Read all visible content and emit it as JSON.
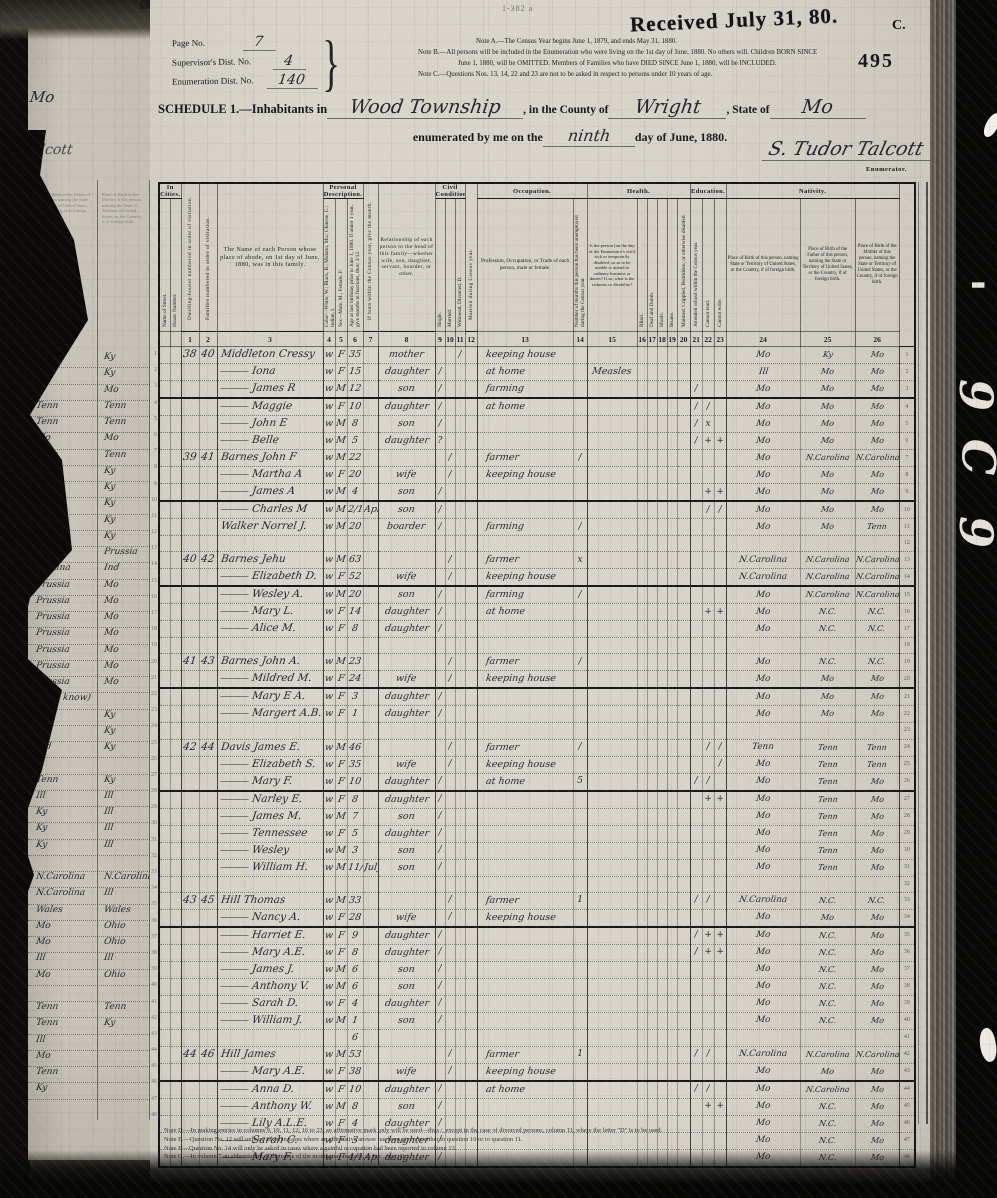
{
  "film": {
    "received_stamp": "Received July 31, 80.",
    "corner_letter": "C.",
    "page_stamp": "495",
    "form_number": "1-382 a",
    "edge_glyphs": [
      "'",
      "9",
      "C",
      "9"
    ]
  },
  "header": {
    "page_no_label": "Page No.",
    "page_no_value": "7",
    "supervisor_label": "Supervisor's Dist. No.",
    "supervisor_value": "4",
    "enumeration_label": "Enumeration Dist. No.",
    "enumeration_value": "140",
    "brace": "}",
    "note_a": "Note A.—The Census Year begins June 1, 1879, and ends May 31, 1880.",
    "note_b1": "Note B.—All persons will be included in the Enumeration who were living on the 1st day of June, 1880.  No others will.  Children BORN SINCE",
    "note_b2": "June 1, 1880, will be OMITTED.  Members of Families who have DIED SINCE June 1, 1880, will be INCLUDED.",
    "note_c": "Note C.—Questions Nos. 13, 14, 22 and 23 are not to be asked in respect to persons under 10 years of age."
  },
  "schedule": {
    "title_prefix": "SCHEDULE 1.—Inhabitants in",
    "township": "Wood Township",
    "county_label": ", in the County of",
    "county": "Wright",
    "state_label": ", State of",
    "state": "Mo",
    "enumerated_prefix": "enumerated by me on the",
    "enumerated_day": "ninth",
    "enumerated_suffix": "day of June, 1880.",
    "enumerator_signature": "S. Tudor Talcott",
    "enumerator_label": "Enumerator."
  },
  "table": {
    "ditto_mark": "———",
    "headers": {
      "in_cities": "In Cities.",
      "street": "Name of Street.",
      "house": "House Number.",
      "dwelling": "Dwelling-houses numbered in order of visitation.",
      "family": "Families numbered in order of visitation.",
      "name": "The Name of each Person whose place of abode, on 1st day of June, 1880, was in this family.",
      "personal": "Personal Description.",
      "color": "Color—White, W.; Black, B.; Mulatto, Mu.; Chinese, C.; Indian, I.",
      "sex": "Sex—Male, M.; Female, F.",
      "age": "Age at last birthday prior to June 1, 1880.  If under 1 year, give months in fractions, thus: 3/12.",
      "month": "If born within the Census year, give the month.",
      "relationship": "Relationship of each person to the head of this family—whether wife, son, daughter, servant, boarder, or other.",
      "civil": "Civil Condition.",
      "single": "Single.",
      "married": "Married.",
      "widowed": "Widowed, Divorced, D.",
      "married_year": "Married during Census year.",
      "occupation_group": "Occupation.",
      "profession": "Profession, Occupation, or Trade of each person, male or female.",
      "unemployed": "Number of months this person has been unemployed during the Census year.",
      "health_group": "Health.",
      "sickness": "Is the person [on the day of the Enumerator's visit] sick or temporarily disabled, so as to be unable to attend to ordinary business or duties?  If so, what is the sickness or disability?",
      "blind": "Blind.",
      "deaf": "Deaf and Dumb.",
      "idiotic": "Idiotic.",
      "insane": "Insane.",
      "maimed": "Maimed, Crippled, Bedridden, or otherwise disabled.",
      "education_group": "Education.",
      "school": "Attended school within the Census year.",
      "cannot_read": "Cannot read.",
      "cannot_write": "Cannot write.",
      "nativity_group": "Nativity.",
      "birth_person": "Place of Birth of this person, naming State or Territory of United States, or the Country, if of foreign birth.",
      "birth_father": "Place of Birth of the Father of this person, naming the State or Territory of United States, or the Country, if of foreign birth.",
      "birth_mother": "Place of Birth of the Mother of this person, naming the State or Territory of United States, or the Country, if of foreign birth."
    },
    "numbers": [
      "1",
      "2",
      "3",
      "4",
      "5",
      "6",
      "7",
      "8",
      "9",
      "10",
      "11",
      "12",
      "13",
      "14",
      "15",
      "16",
      "17",
      "18",
      "19",
      "20",
      "21",
      "22",
      "23",
      "24",
      "25",
      "26"
    ],
    "heavy_rows": [
      3,
      9,
      14,
      20,
      26,
      34,
      43
    ],
    "rows": [
      {
        "d": "38",
        "f": "40",
        "n": "Middleton Cressy",
        "c": "w",
        "s": "F",
        "a": "35",
        "r": "mother",
        "w11": "/",
        "occ": "keeping house",
        "b24": "Mo",
        "b25": "Ky",
        "b26": "Mo"
      },
      {
        "dit": 1,
        "n": "Iona",
        "c": "w",
        "s": "F",
        "a": "15",
        "r": "daughter",
        "s9": "/",
        "occ": "at home",
        "sick": "Measles",
        "b24": "Ill",
        "b25": "Mo",
        "b26": "Mo"
      },
      {
        "dit": 1,
        "n": "James R",
        "c": "w",
        "s": "M",
        "a": "12",
        "r": "son",
        "s9": "/",
        "occ": "farming",
        "e21": "/",
        "b24": "Mo",
        "b25": "Mo",
        "b26": "Mo"
      },
      {
        "dit": 1,
        "n": "Maggie",
        "c": "w",
        "s": "F",
        "a": "10",
        "r": "daughter",
        "s9": "/",
        "occ": "at home",
        "e21": "/",
        "e22": "/",
        "b24": "Mo",
        "b25": "Mo",
        "b26": "Mo"
      },
      {
        "dit": 1,
        "n": "John E",
        "c": "w",
        "s": "M",
        "a": "8",
        "r": "son",
        "s9": "/",
        "e21": "/",
        "e22": "x",
        "b24": "Mo",
        "b25": "Mo",
        "b26": "Mo"
      },
      {
        "dit": 1,
        "n": "Belle",
        "c": "w",
        "s": "M",
        "a": "5",
        "r": "daughter",
        "s9": "?",
        "e21": "/",
        "e22": "+",
        "e23": "+",
        "b24": "Mo",
        "b25": "Mo",
        "b26": "Mo"
      },
      {
        "d": "39",
        "f": "41",
        "n": "Barnes John F",
        "c": "w",
        "s": "M",
        "a": "22",
        "m10": "/",
        "occ": "farmer",
        "u14": "/",
        "b24": "Mo",
        "b25": "N.Carolina",
        "b26": "N.Carolina"
      },
      {
        "dit": 1,
        "n": "Martha A",
        "c": "w",
        "s": "F",
        "a": "20",
        "r": "wife",
        "m10": "/",
        "occ": "keeping house",
        "b24": "Mo",
        "b25": "Mo",
        "b26": "Mo"
      },
      {
        "dit": 1,
        "n": "James A",
        "c": "w",
        "s": "M",
        "a": "4",
        "r": "son",
        "s9": "/",
        "e22": "+",
        "e23": "+",
        "b24": "Mo",
        "b25": "Mo",
        "b26": "Mo"
      },
      {
        "dit": 1,
        "n": "Charles M",
        "c": "w",
        "s": "M",
        "a": "2/12",
        "mo": "Apl",
        "r": "son",
        "s9": "/",
        "e22": "/",
        "e23": "/",
        "b24": "Mo",
        "b25": "Mo",
        "b26": "Mo"
      },
      {
        "n": "Walker Norrel J.",
        "c": "w",
        "s": "M",
        "a": "20",
        "r": "boarder",
        "s9": "/",
        "occ": "farming",
        "u14": "/",
        "b24": "Mo",
        "b25": "Mo",
        "b26": "Tenn"
      },
      {},
      {
        "d": "40",
        "f": "42",
        "n": "Barnes Jehu",
        "c": "w",
        "s": "M",
        "a": "63",
        "m10": "/",
        "occ": "farmer",
        "u14": "x",
        "b24": "N.Carolina",
        "b25": "N.Carolina",
        "b26": "N.Carolina"
      },
      {
        "dit": 1,
        "n": "Elizabeth D.",
        "c": "w",
        "s": "F",
        "a": "52",
        "r": "wife",
        "m10": "/",
        "occ": "keeping house",
        "b24": "N.Carolina",
        "b25": "N.Carolina",
        "b26": "N.Carolina"
      },
      {
        "dit": 1,
        "n": "Wesley A.",
        "c": "w",
        "s": "M",
        "a": "20",
        "r": "son",
        "s9": "/",
        "occ": "farming",
        "u14": "/",
        "b24": "Mo",
        "b25": "N.Carolina",
        "b26": "N.Carolina"
      },
      {
        "dit": 1,
        "n": "Mary L.",
        "c": "w",
        "s": "F",
        "a": "14",
        "r": "daughter",
        "s9": "/",
        "occ": "at home",
        "e22": "+",
        "e23": "+",
        "b24": "Mo",
        "b25": "N.C.",
        "b26": "N.C."
      },
      {
        "dit": 1,
        "n": "Alice M.",
        "c": "w",
        "s": "F",
        "a": "8",
        "r": "daughter",
        "s9": "/",
        "b24": "Mo",
        "b25": "N.C.",
        "b26": "N.C."
      },
      {},
      {
        "d": "41",
        "f": "43",
        "n": "Barnes John A.",
        "c": "w",
        "s": "M",
        "a": "23",
        "m10": "/",
        "occ": "farmer",
        "u14": "/",
        "b24": "Mo",
        "b25": "N.C.",
        "b26": "N.C."
      },
      {
        "dit": 1,
        "n": "Mildred M.",
        "c": "w",
        "s": "F",
        "a": "24",
        "r": "wife",
        "m10": "/",
        "occ": "keeping house",
        "b24": "Mo",
        "b25": "Mo",
        "b26": "Mo"
      },
      {
        "dit": 1,
        "n": "Mary E A.",
        "c": "w",
        "s": "F",
        "a": "3",
        "r": "daughter",
        "s9": "/",
        "b24": "Mo",
        "b25": "Mo",
        "b26": "Mo"
      },
      {
        "dit": 1,
        "n": "Margert A.B.",
        "c": "w",
        "s": "F",
        "a": "1",
        "r": "daughter",
        "s9": "/",
        "b24": "Mo",
        "b25": "Mo",
        "b26": "Mo"
      },
      {},
      {
        "d": "42",
        "f": "44",
        "n": "Davis James E.",
        "c": "w",
        "s": "M",
        "a": "46",
        "m10": "/",
        "occ": "farmer",
        "u14": "/",
        "e22": "/",
        "e23": "/",
        "b24": "Tenn",
        "b25": "Tenn",
        "b26": "Tenn"
      },
      {
        "dit": 1,
        "n": "Elizabeth S.",
        "c": "w",
        "s": "F",
        "a": "35",
        "r": "wife",
        "m10": "/",
        "occ": "keeping house",
        "e23": "/",
        "b24": "Mo",
        "b25": "Tenn",
        "b26": "Tenn"
      },
      {
        "dit": 1,
        "n": "Mary F.",
        "c": "w",
        "s": "F",
        "a": "10",
        "r": "daughter",
        "s9": "/",
        "occ": "at home",
        "u14": "5",
        "e21": "/",
        "e22": "/",
        "b24": "Mo",
        "b25": "Tenn",
        "b26": "Mo"
      },
      {
        "dit": 1,
        "n": "Narley E.",
        "c": "w",
        "s": "F",
        "a": "8",
        "r": "daughter",
        "s9": "/",
        "e22": "+",
        "e23": "+",
        "b24": "Mo",
        "b25": "Tenn",
        "b26": "Mo"
      },
      {
        "dit": 1,
        "n": "James M.",
        "c": "w",
        "s": "M",
        "a": "7",
        "r": "son",
        "s9": "/",
        "b24": "Mo",
        "b25": "Tenn",
        "b26": "Mo"
      },
      {
        "dit": 1,
        "n": "Tennessee",
        "c": "w",
        "s": "F",
        "a": "5",
        "r": "daughter",
        "s9": "/",
        "b24": "Mo",
        "b25": "Tenn",
        "b26": "Mo"
      },
      {
        "dit": 1,
        "n": "Wesley",
        "c": "w",
        "s": "M",
        "a": "3",
        "r": "son",
        "s9": "/",
        "b24": "Mo",
        "b25": "Tenn",
        "b26": "Mo"
      },
      {
        "dit": 1,
        "n": "William H.",
        "c": "w",
        "s": "M",
        "a": "11/12",
        "mo": "July",
        "r": "son",
        "s9": "/",
        "b24": "Mo",
        "b25": "Tenn",
        "b26": "Mo"
      },
      {},
      {
        "d": "43",
        "f": "45",
        "n": "Hill Thomas",
        "c": "w",
        "s": "M",
        "a": "33",
        "m10": "/",
        "occ": "farmer",
        "u14": "1",
        "e21": "/",
        "e22": "/",
        "b24": "N.Carolina",
        "b25": "N.C.",
        "b26": "N.C."
      },
      {
        "dit": 1,
        "n": "Nancy A.",
        "c": "w",
        "s": "F",
        "a": "28",
        "r": "wife",
        "m10": "/",
        "occ": "keeping house",
        "b24": "Mo",
        "b25": "Mo",
        "b26": "Mo"
      },
      {
        "dit": 1,
        "n": "Harriet E.",
        "c": "w",
        "s": "F",
        "a": "9",
        "r": "daughter",
        "s9": "/",
        "e21": "/",
        "e22": "+",
        "e23": "+",
        "b24": "Mo",
        "b25": "N.C.",
        "b26": "Mo"
      },
      {
        "dit": 1,
        "n": "Mary A.E.",
        "c": "w",
        "s": "F",
        "a": "8",
        "r": "daughter",
        "s9": "/",
        "e21": "/",
        "e22": "+",
        "e23": "+",
        "b24": "Mo",
        "b25": "N.C.",
        "b26": "Mo"
      },
      {
        "dit": 1,
        "n": "James J.",
        "c": "w",
        "s": "M",
        "a": "6",
        "r": "son",
        "s9": "/",
        "b24": "Mo",
        "b25": "N.C.",
        "b26": "Mo"
      },
      {
        "dit": 1,
        "n": "Anthony V.",
        "c": "w",
        "s": "M",
        "a": "6",
        "r": "son",
        "s9": "/",
        "b24": "Mo",
        "b25": "N.C.",
        "b26": "Mo"
      },
      {
        "dit": 1,
        "n": "Sarah D.",
        "c": "w",
        "s": "F",
        "a": "4",
        "r": "daughter",
        "s9": "/",
        "b24": "Mo",
        "b25": "N.C.",
        "b26": "Mo"
      },
      {
        "dit": 1,
        "n": "William J.",
        "c": "w",
        "s": "M",
        "a": "1",
        "r": "son",
        "s9": "/",
        "b24": "Mo",
        "b25": "N.C.",
        "b26": "Mo"
      },
      {
        "a": "6"
      },
      {
        "d": "44",
        "f": "46",
        "n": "Hill James",
        "c": "w",
        "s": "M",
        "a": "53",
        "m10": "/",
        "occ": "farmer",
        "u14": "1",
        "e21": "/",
        "e22": "/",
        "b24": "N.Carolina",
        "b25": "N.Carolina",
        "b26": "N.Carolina"
      },
      {
        "dit": 1,
        "n": "Mary A.E.",
        "c": "w",
        "s": "F",
        "a": "38",
        "r": "wife",
        "m10": "/",
        "occ": "keeping house",
        "b24": "Mo",
        "b25": "Mo",
        "b26": "Mo"
      },
      {
        "dit": 1,
        "n": "Anna D.",
        "c": "w",
        "s": "F",
        "a": "10",
        "r": "daughter",
        "s9": "/",
        "occ": "at home",
        "e21": "/",
        "e22": "/",
        "b24": "Mo",
        "b25": "N.Carolina",
        "b26": "Mo"
      },
      {
        "dit": 1,
        "n": "Anthony W.",
        "c": "w",
        "s": "M",
        "a": "8",
        "r": "son",
        "s9": "/",
        "e22": "+",
        "e23": "+",
        "b24": "Mo",
        "b25": "N.C.",
        "b26": "Mo"
      },
      {
        "dit": 1,
        "n": "Lily A.L.E.",
        "c": "w",
        "s": "F",
        "a": "4",
        "r": "daughter",
        "s9": "/",
        "b24": "Mo",
        "b25": "N.C.",
        "b26": "Mo"
      },
      {
        "dit": 1,
        "n": "Sarah C.",
        "c": "w",
        "s": "F",
        "a": "3",
        "r": "daughter",
        "s9": "/",
        "b24": "Mo",
        "b25": "N.C.",
        "b26": "Mo"
      },
      {
        "dit": 1,
        "n": "Mary F.",
        "c": "w",
        "s": "F",
        "a": "4/12",
        "mo": "Apr",
        "r": "daughter",
        "s9": "/",
        "b24": "Mo",
        "b25": "N.C.",
        "b26": "Mo"
      }
    ]
  },
  "left_fragment": {
    "hw_top": "Mo",
    "hw_sig": "Talcott",
    "rows": [
      "Ky|Ky",
      "Ky|Ky",
      "|Mo",
      "Tenn|Tenn",
      "Tenn|Tenn",
      "Mo|Mo",
      "Tenn|Tenn",
      "Ky|Ky",
      "Mo|Ky",
      "Ky|Ky",
      "Ky|Ky",
      "Ky|Ky",
      "Prussia|Prussia",
      "Indiana|Ind",
      "Prussia|Mo",
      "Prussia|Mo",
      "Prussia|Mo",
      "Prussia|Mo",
      "Prussia|Mo",
      "Prussia|Mo",
      "Prussia|Mo",
      "(dont know)|",
      "Ky|Ky",
      "Ind|Ky",
      "Ind|Ky",
      "|",
      "Tenn|Ky",
      "Ill|Ill",
      "Ky|Ill",
      "Ky|Ill",
      "Ky|Ill",
      "|",
      "N.Carolina|N.Carolina",
      "N.Carolina|Ill",
      "Wales|Wales",
      "Mo|Ohio",
      "Mo|Ohio",
      "Ill|Ill",
      "Mo|Ohio",
      "|",
      "Tenn|Tenn",
      "Tenn|Ky",
      "Ill|",
      "Mo|",
      "Tenn|",
      "Ky|"
    ]
  },
  "footnotes": [
    "Note D.—In making entries in columns 9, 10, 11, 12, 16 to 23, an affirmative mark only will be used—thus /, except in the case of divorced persons, column 11, where the letter \"D\" is to be used.",
    "Note E.—Question No. 12 will only be asked in cases where an affirmative answer has been given in either to question 10 or to question 11.",
    "Note F.—Question No. 14 will only be asked in cases where a gainful occupation had been reported in column 13.",
    "Note G.—In column 7 an abbreviation of the name of the month may be used, as Jan., Apr., Oct."
  ]
}
